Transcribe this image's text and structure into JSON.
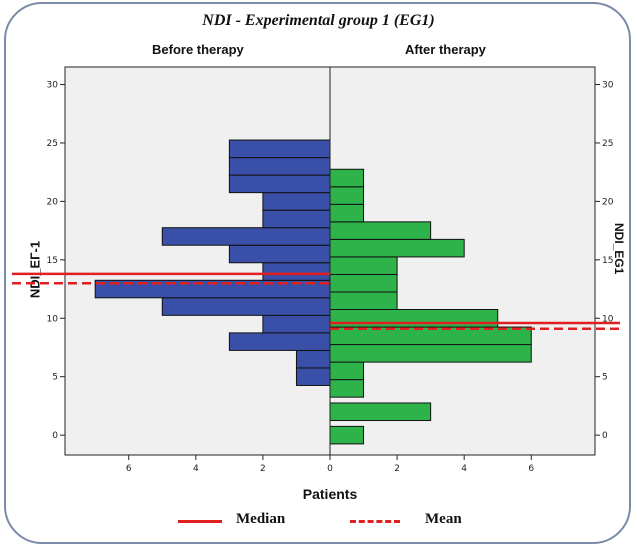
{
  "chart_data": {
    "type": "bar",
    "orientation": "horizontal-back-to-back",
    "title": "NDI  -  Experimental group 1 (EG1)",
    "panels": [
      {
        "name": "Before therapy",
        "ylabel": "NDI_EГ-1",
        "bins": [
          {
            "y": 5,
            "count": 1
          },
          {
            "y": 6.5,
            "count": 1
          },
          {
            "y": 8,
            "count": 3
          },
          {
            "y": 9.5,
            "count": 2
          },
          {
            "y": 11,
            "count": 5
          },
          {
            "y": 12.5,
            "count": 7
          },
          {
            "y": 14,
            "count": 2
          },
          {
            "y": 15.5,
            "count": 3
          },
          {
            "y": 17,
            "count": 5
          },
          {
            "y": 18.5,
            "count": 2
          },
          {
            "y": 20,
            "count": 2
          },
          {
            "y": 21.5,
            "count": 3
          },
          {
            "y": 23,
            "count": 3
          },
          {
            "y": 24.5,
            "count": 3
          }
        ],
        "median": 13.8,
        "mean": 13.0,
        "color": "#3a50a8"
      },
      {
        "name": "After therapy",
        "ylabel": "NDI_EG1",
        "bins": [
          {
            "y": 0,
            "count": 1
          },
          {
            "y": 2,
            "count": 3
          },
          {
            "y": 4,
            "count": 1
          },
          {
            "y": 5.5,
            "count": 1
          },
          {
            "y": 7,
            "count": 6
          },
          {
            "y": 8.5,
            "count": 6
          },
          {
            "y": 10,
            "count": 5
          },
          {
            "y": 11.5,
            "count": 2
          },
          {
            "y": 13,
            "count": 2
          },
          {
            "y": 14.5,
            "count": 2
          },
          {
            "y": 16,
            "count": 4
          },
          {
            "y": 17.5,
            "count": 3
          },
          {
            "y": 19,
            "count": 1
          },
          {
            "y": 20.5,
            "count": 1
          },
          {
            "y": 22,
            "count": 1
          }
        ],
        "median": 9.6,
        "mean": 9.1,
        "color": "#2eb34a"
      }
    ],
    "xlabel": "Patients",
    "x_ticks_left": [
      6,
      4,
      2,
      0
    ],
    "x_ticks_right": [
      0,
      2,
      4,
      6
    ],
    "xlim": [
      0,
      7.9
    ],
    "y_ticks": [
      0,
      5,
      10,
      15,
      20,
      25,
      30
    ],
    "ylim": [
      -1.7,
      31.5
    ],
    "legend": [
      {
        "label": "Median",
        "style": "solid",
        "color": "#e02020"
      },
      {
        "label": "Mean",
        "style": "dashed",
        "color": "#e02020"
      }
    ],
    "legend_position": "bottom",
    "background": "#f0f0f0"
  }
}
